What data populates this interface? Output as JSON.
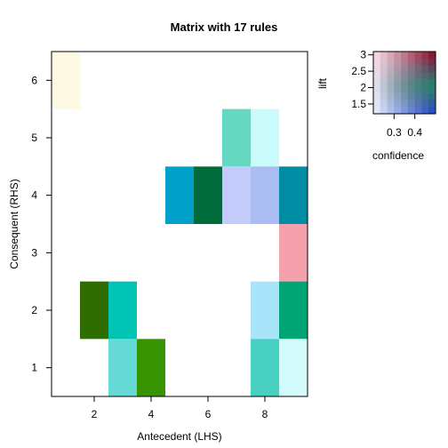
{
  "chart_data": {
    "type": "heatmap",
    "title": "Matrix with 17 rules",
    "xlabel": "Antecedent (LHS)",
    "ylabel": "Consequent (RHS)",
    "xlim": [
      0.5,
      9.5
    ],
    "ylim": [
      0.5,
      6.5
    ],
    "x_ticks": [
      2,
      4,
      6,
      8
    ],
    "y_ticks": [
      1,
      2,
      3,
      4,
      5,
      6
    ],
    "cells": [
      {
        "x": 1,
        "y": 6,
        "color": "#fef9e2"
      },
      {
        "x": 2,
        "y": 2,
        "color": "#2f6d00"
      },
      {
        "x": 3,
        "y": 2,
        "color": "#00c4b4"
      },
      {
        "x": 3,
        "y": 1,
        "color": "#65d9d5"
      },
      {
        "x": 4,
        "y": 1,
        "color": "#379300"
      },
      {
        "x": 5,
        "y": 4,
        "color": "#00a0c8"
      },
      {
        "x": 6,
        "y": 4,
        "color": "#006b3b"
      },
      {
        "x": 7,
        "y": 5,
        "color": "#64d8c0"
      },
      {
        "x": 7,
        "y": 4,
        "color": "#c4cbfb"
      },
      {
        "x": 8,
        "y": 5,
        "color": "#ccfbfb"
      },
      {
        "x": 8,
        "y": 4,
        "color": "#a9bdf3"
      },
      {
        "x": 8,
        "y": 2,
        "color": "#a8e5fb"
      },
      {
        "x": 8,
        "y": 1,
        "color": "#47cfbf"
      },
      {
        "x": 9,
        "y": 4,
        "color": "#008ca3"
      },
      {
        "x": 9,
        "y": 3,
        "color": "#f4a0ad"
      },
      {
        "x": 9,
        "y": 2,
        "color": "#00a576"
      },
      {
        "x": 9,
        "y": 1,
        "color": "#d4fbfb"
      }
    ],
    "legend": {
      "xlabel": "confidence",
      "ylabel": "lift",
      "x_ticks": [
        0.3,
        0.4
      ],
      "y_ticks": [
        1.5,
        2,
        2.5,
        3
      ],
      "xlim": [
        0.2,
        0.5
      ],
      "ylim": [
        1.2,
        3.1
      ],
      "position": "top-right"
    }
  }
}
